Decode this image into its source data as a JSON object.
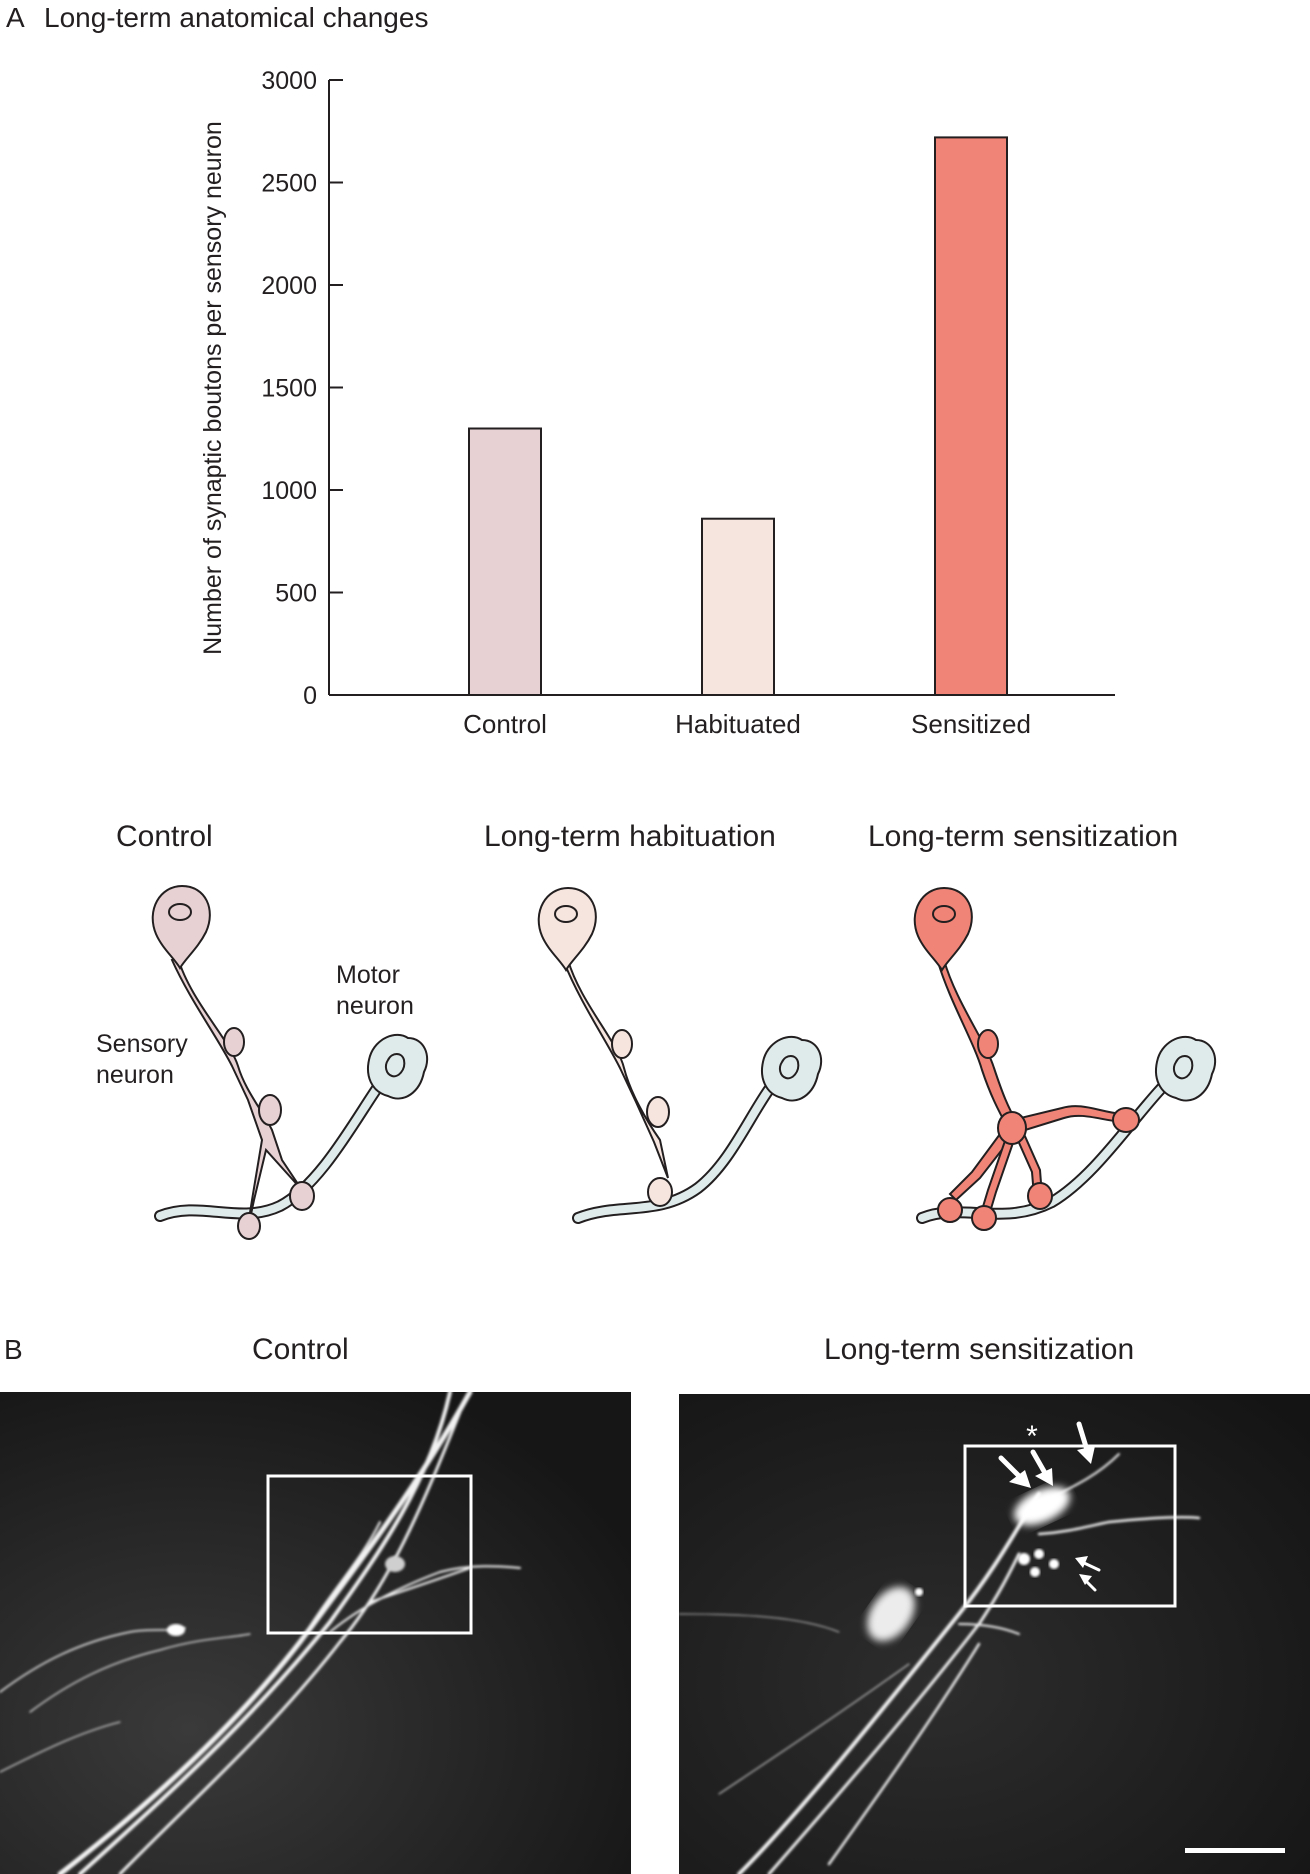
{
  "panel_a": {
    "letter": "A",
    "title": "Long-term anatomical changes"
  },
  "chart_data": {
    "type": "bar",
    "categories": [
      "Control",
      "Habituated",
      "Sensitized"
    ],
    "values": [
      1300,
      860,
      2720
    ],
    "colors": [
      "#e7d1d3",
      "#f6e5df",
      "#ef8477"
    ],
    "ylabel": "Number of synaptic boutons per sensory neuron",
    "ylim": [
      0,
      3000
    ],
    "yticks": [
      0,
      500,
      1000,
      1500,
      2000,
      2500,
      3000
    ],
    "grid": false
  },
  "diagrams": {
    "control": {
      "heading": "Control",
      "sensory_label": "Sensory\nneuron",
      "motor_label": "Motor\nneuron",
      "fill": "#e7d1d3"
    },
    "habituation": {
      "heading": "Long-term habituation",
      "fill": "#f6e5df"
    },
    "sensitization": {
      "heading": "Long-term sensitization",
      "fill": "#ef8477"
    },
    "motor_fill": "#dfeaea"
  },
  "panel_b": {
    "letter": "B",
    "left_title": "Control",
    "right_title": "Long-term sensitization",
    "asterisk": "*"
  }
}
